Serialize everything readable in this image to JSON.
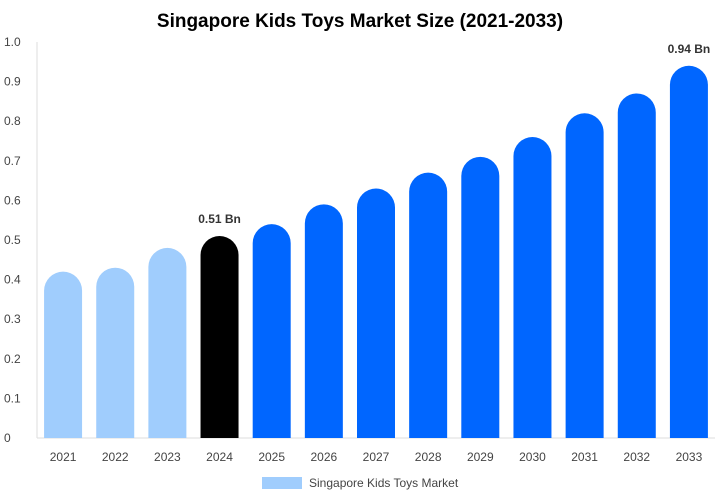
{
  "chart_data": {
    "type": "bar",
    "title": "Singapore Kids Toys Market Size (2021-2033)",
    "xlabel": "",
    "ylabel": "",
    "categories": [
      "2021",
      "2022",
      "2023",
      "2024",
      "2025",
      "2026",
      "2027",
      "2028",
      "2029",
      "2030",
      "2031",
      "2032",
      "2033"
    ],
    "series": [
      {
        "name": "Singapore Kids Toys Market",
        "values": [
          0.42,
          0.43,
          0.48,
          0.51,
          0.54,
          0.59,
          0.63,
          0.67,
          0.71,
          0.76,
          0.82,
          0.87,
          0.94
        ]
      }
    ],
    "ylim": [
      0,
      1.0
    ],
    "yticks": [
      "0",
      "0.1",
      "0.2",
      "0.3",
      "0.4",
      "0.5",
      "0.6",
      "0.7",
      "0.8",
      "0.9",
      "1.0"
    ],
    "data_labels": [
      {
        "category": "2024",
        "text": "0.51 Bn"
      },
      {
        "category": "2033",
        "text": "0.94 Bn"
      }
    ],
    "bar_colors": {
      "historical": "#a0cdfd",
      "current": "#000000",
      "forecast": "#0066ff"
    },
    "historical_categories": [
      "2021",
      "2022",
      "2023"
    ],
    "current_category": "2024",
    "grid": false,
    "legend_position": "bottom",
    "legend_color": "#a0cdfd"
  }
}
